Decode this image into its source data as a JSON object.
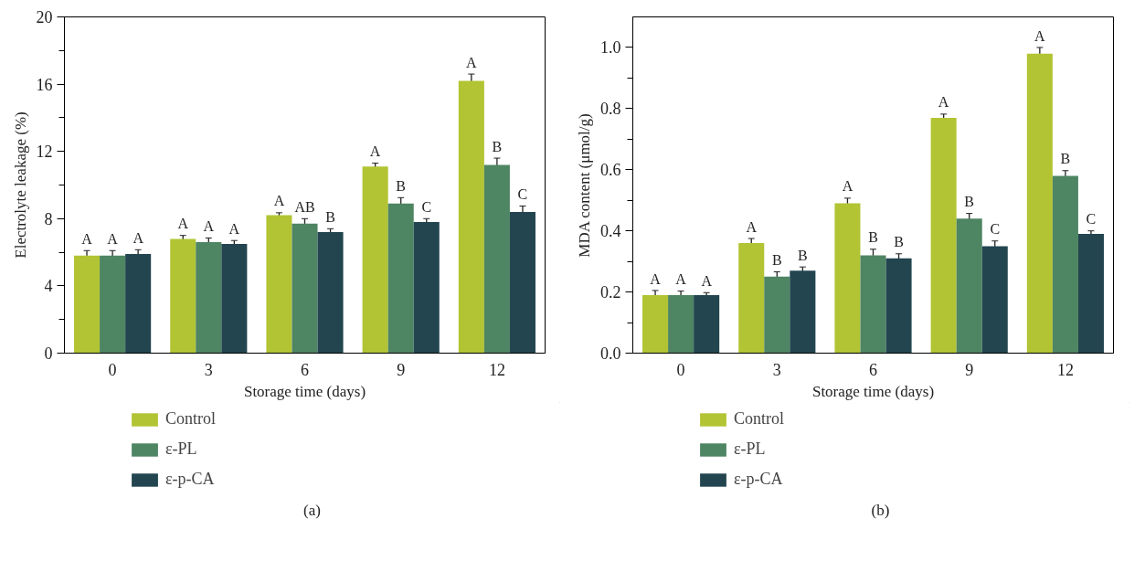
{
  "chart_data": [
    {
      "type": "bar",
      "xlabel": "Storage time (days)",
      "ylabel": "Electrolyte leakage (%)",
      "categories": [
        "0",
        "3",
        "6",
        "9",
        "12"
      ],
      "series": [
        {
          "name": "Control",
          "color": "#b2c433",
          "values": [
            5.8,
            6.8,
            8.2,
            11.1,
            16.2
          ],
          "errors": [
            0.3,
            0.2,
            0.15,
            0.2,
            0.4
          ],
          "value_labels": [
            "A",
            "A",
            "A",
            "A",
            "A"
          ]
        },
        {
          "name": "ε-PL",
          "color": "#4e8562",
          "values": [
            5.8,
            6.6,
            7.7,
            8.9,
            11.2
          ],
          "errors": [
            0.3,
            0.25,
            0.3,
            0.35,
            0.4
          ],
          "value_labels": [
            "A",
            "A",
            "AB",
            "B",
            "B"
          ]
        },
        {
          "name": "ε-p-CA",
          "color": "#22454f",
          "values": [
            5.9,
            6.5,
            7.2,
            7.8,
            8.4
          ],
          "errors": [
            0.25,
            0.2,
            0.2,
            0.2,
            0.35
          ],
          "value_labels": [
            "A",
            "A",
            "B",
            "C",
            "C"
          ]
        }
      ],
      "ylim": [
        0,
        20
      ],
      "yticks": [
        0,
        {
          "value": 2,
          "label": null
        },
        4,
        {
          "value": 6,
          "label": null
        },
        8,
        {
          "value": 10,
          "label": null
        },
        12,
        {
          "value": 14,
          "label": null
        },
        16,
        {
          "value": 18,
          "label": null
        },
        20
      ],
      "grid": false,
      "legend": "bottom left",
      "annotations": [
        "(a)"
      ]
    },
    {
      "type": "bar",
      "xlabel": "Storage time (days)",
      "ylabel": "MDA content (μmol/g)",
      "categories": [
        "0",
        "3",
        "6",
        "9",
        "12"
      ],
      "series": [
        {
          "name": "Control",
          "color": "#b2c433",
          "values": [
            0.19,
            0.36,
            0.49,
            0.77,
            0.98
          ],
          "errors": [
            0.015,
            0.015,
            0.017,
            0.012,
            0.02
          ],
          "value_labels": [
            "A",
            "A",
            "A",
            "A",
            "A"
          ]
        },
        {
          "name": "ε-PL",
          "color": "#4e8562",
          "values": [
            0.19,
            0.25,
            0.32,
            0.44,
            0.58
          ],
          "errors": [
            0.013,
            0.016,
            0.02,
            0.017,
            0.017
          ],
          "value_labels": [
            "A",
            "B",
            "B",
            "B",
            "B"
          ]
        },
        {
          "name": "ε-p-CA",
          "color": "#22454f",
          "values": [
            0.19,
            0.27,
            0.31,
            0.35,
            0.39
          ],
          "errors": [
            0.008,
            0.012,
            0.015,
            0.017,
            0.01
          ],
          "value_labels": [
            "A",
            "B",
            "B",
            "C",
            "C"
          ]
        }
      ],
      "ylim": [
        0,
        1.1
      ],
      "yticks": [
        {
          "value": 0,
          "label": "0.0"
        },
        {
          "value": 0.1,
          "label": null
        },
        {
          "value": 0.2,
          "label": "0.2"
        },
        {
          "value": 0.3,
          "label": null
        },
        {
          "value": 0.4,
          "label": "0.4"
        },
        {
          "value": 0.5,
          "label": null
        },
        {
          "value": 0.6,
          "label": "0.6"
        },
        {
          "value": 0.7,
          "label": null
        },
        {
          "value": 0.8,
          "label": "0.8"
        },
        {
          "value": 0.9,
          "label": null
        },
        {
          "value": 1.0,
          "label": "1.0"
        }
      ],
      "grid": false,
      "legend": "bottom left",
      "annotations": [
        "(b)"
      ]
    }
  ]
}
